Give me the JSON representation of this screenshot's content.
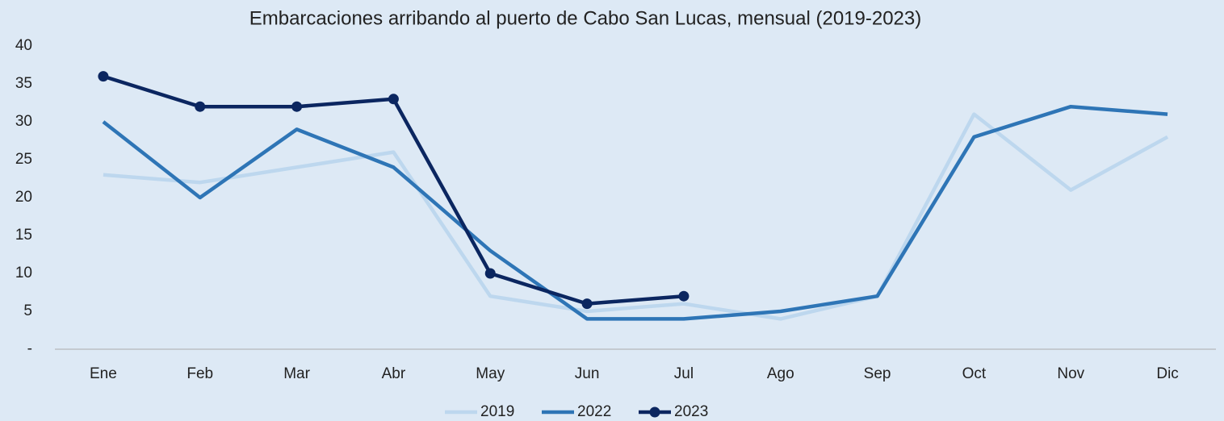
{
  "chart_data": {
    "type": "line",
    "title": "Embarcaciones arribando al puerto de Cabo San Lucas, mensual (2019-2023)",
    "categories": [
      "Ene",
      "Feb",
      "Mar",
      "Abr",
      "May",
      "Jun",
      "Jul",
      "Ago",
      "Sep",
      "Oct",
      "Nov",
      "Dic"
    ],
    "series": [
      {
        "name": "2019",
        "color": "#bdd7ee",
        "marker": false,
        "values": [
          23,
          22,
          24,
          26,
          7,
          5,
          6,
          4,
          7,
          31,
          21,
          28
        ]
      },
      {
        "name": "2022",
        "color": "#2e75b6",
        "marker": false,
        "values": [
          30,
          20,
          29,
          24,
          13,
          4,
          4,
          5,
          7,
          28,
          32,
          31
        ]
      },
      {
        "name": "2023",
        "color": "#0b2660",
        "marker": true,
        "values": [
          36,
          32,
          32,
          33,
          10,
          6,
          7,
          null,
          null,
          null,
          null,
          null
        ]
      }
    ],
    "ylim": [
      0,
      40
    ],
    "yticks": [
      {
        "value": 0,
        "label": "-"
      },
      5,
      10,
      15,
      20,
      25,
      30,
      35,
      40
    ],
    "grid": false,
    "legend": "bottom"
  }
}
